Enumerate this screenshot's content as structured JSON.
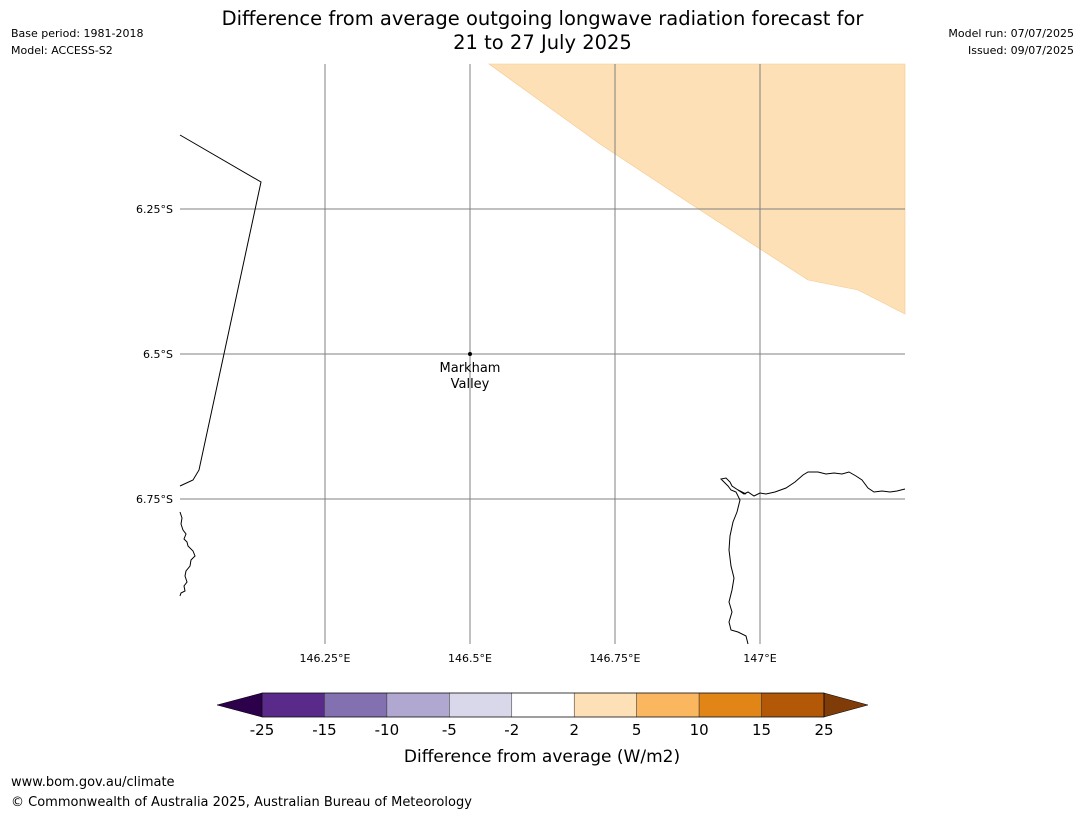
{
  "header": {
    "title_line1": "Difference from average outgoing longwave radiation forecast for",
    "title_line2": "21 to 27 July 2025",
    "base_period": "Base period: 1981-2018",
    "model": "Model: ACCESS-S2",
    "model_run": "Model run: 07/07/2025",
    "issued": "Issued: 09/07/2025"
  },
  "map": {
    "lon_ticks": [
      {
        "value": 146.25,
        "label": "146.25°E"
      },
      {
        "value": 146.5,
        "label": "146.5°E"
      },
      {
        "value": 146.75,
        "label": "146.75°E"
      },
      {
        "value": 147.0,
        "label": "147°E"
      }
    ],
    "lat_ticks": [
      {
        "value": -6.25,
        "label": "6.25°S"
      },
      {
        "value": -6.5,
        "label": "6.5°S"
      },
      {
        "value": -6.75,
        "label": "6.75°S"
      }
    ],
    "place": {
      "name_line1": "Markham",
      "name_line2": "Valley",
      "lon": 146.5,
      "lat": -6.5
    },
    "anomaly_region_color": "#fde0b6",
    "gridline_color": "#808080"
  },
  "colorbar": {
    "title": "Difference from average (W/m2)",
    "tick_labels": [
      "-25",
      "-15",
      "-10",
      "-5",
      "-2",
      "2",
      "5",
      "10",
      "15",
      "25"
    ],
    "bin_colors": [
      "#5a2a8a",
      "#8370b0",
      "#b1a8d2",
      "#d9d8ea",
      "#ffffff",
      "#fee0b6",
      "#fbb660",
      "#e18516",
      "#b35806"
    ],
    "under_color": "#2d004b",
    "over_color": "#7f3b08"
  },
  "footer": {
    "url": "www.bom.gov.au/climate",
    "copyright": "© Commonwealth of Australia 2025, Australian Bureau of Meteorology"
  }
}
